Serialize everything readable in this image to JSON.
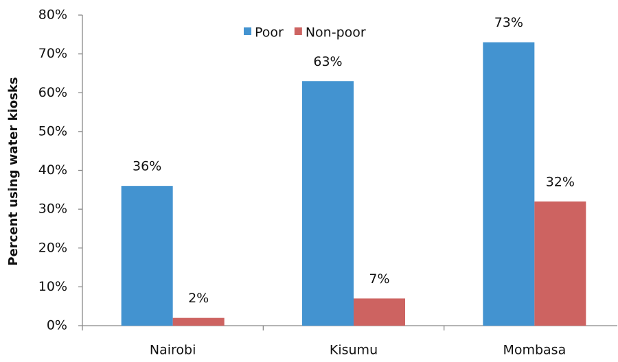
{
  "chart_data": {
    "type": "bar",
    "ylabel": "Percent using water kiosks",
    "categories": [
      "Nairobi",
      "Kisumu",
      "Mombasa"
    ],
    "series": [
      {
        "name": "Poor",
        "color": "#4393d0",
        "values": [
          36,
          63,
          73
        ],
        "value_labels": [
          "36%",
          "63%",
          "73%"
        ]
      },
      {
        "name": "Non-poor",
        "color": "#cd6361",
        "values": [
          2,
          7,
          32
        ],
        "value_labels": [
          "2%",
          "7%",
          "32%"
        ]
      }
    ],
    "ylim": [
      0,
      80
    ],
    "yticks": [
      {
        "value": 0,
        "label": "0%"
      },
      {
        "value": 10,
        "label": "10%"
      },
      {
        "value": 20,
        "label": "20%"
      },
      {
        "value": 30,
        "label": "30%"
      },
      {
        "value": 40,
        "label": "40%"
      },
      {
        "value": 50,
        "label": "50%"
      },
      {
        "value": 60,
        "label": "60%"
      },
      {
        "value": 70,
        "label": "70%"
      },
      {
        "value": 80,
        "label": "80%"
      }
    ],
    "legend": "top"
  }
}
